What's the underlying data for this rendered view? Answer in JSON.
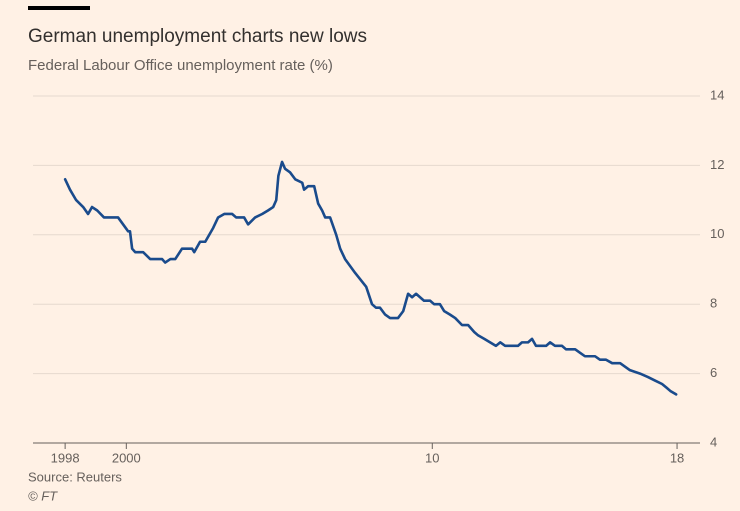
{
  "chart_data": {
    "type": "line",
    "title": "German unemployment charts new lows",
    "subtitle": "Federal Labour Office unemployment rate (%)",
    "source": "Source: Reuters",
    "credit": "© FT",
    "xlim": [
      1996.95,
      2018.75
    ],
    "xticks": [
      1998,
      2000,
      {
        "value": 2010,
        "label": "10"
      },
      {
        "value": 2018,
        "label": "18"
      }
    ],
    "ylim": [
      4,
      14
    ],
    "yticks": [
      4,
      6,
      8,
      10,
      12,
      14
    ],
    "grid": true,
    "color": "#1a4b8c",
    "x": [
      1998.0,
      1998.16,
      1998.36,
      1998.59,
      1998.75,
      1998.88,
      1999.05,
      1999.27,
      1999.73,
      2000.06,
      2000.12,
      2000.19,
      2000.29,
      2000.55,
      2000.78,
      2001.17,
      2001.27,
      2001.44,
      2001.6,
      2001.82,
      2002.15,
      2002.22,
      2002.41,
      2002.58,
      2002.84,
      2003.0,
      2003.2,
      2003.46,
      2003.59,
      2003.85,
      2003.98,
      2004.21,
      2004.44,
      2004.63,
      2004.8,
      2004.9,
      2004.97,
      2005.09,
      2005.19,
      2005.35,
      2005.52,
      2005.75,
      2005.81,
      2005.94,
      2006.14,
      2006.27,
      2006.4,
      2006.5,
      2006.66,
      2006.86,
      2006.99,
      2007.15,
      2007.48,
      2007.84,
      2008.03,
      2008.16,
      2008.29,
      2008.46,
      2008.62,
      2008.88,
      2009.05,
      2009.21,
      2009.34,
      2009.47,
      2009.6,
      2009.73,
      2009.93,
      2010.06,
      2010.25,
      2010.39,
      2010.58,
      2010.75,
      2010.97,
      2011.17,
      2011.37,
      2011.5,
      2011.7,
      2011.89,
      2012.08,
      2012.22,
      2012.38,
      2012.8,
      2012.93,
      2013.13,
      2013.26,
      2013.39,
      2013.72,
      2013.85,
      2014.01,
      2014.24,
      2014.37,
      2014.67,
      2014.83,
      2014.99,
      2015.32,
      2015.48,
      2015.68,
      2015.88,
      2016.14,
      2016.3,
      2016.46,
      2016.79,
      2017.05,
      2017.28,
      2017.51,
      2017.65,
      2017.78,
      2017.97
    ],
    "values": [
      11.6,
      11.3,
      11.0,
      10.8,
      10.6,
      10.8,
      10.7,
      10.5,
      10.5,
      10.1,
      10.1,
      9.6,
      9.5,
      9.5,
      9.3,
      9.3,
      9.2,
      9.3,
      9.3,
      9.6,
      9.6,
      9.5,
      9.8,
      9.8,
      10.2,
      10.5,
      10.6,
      10.6,
      10.5,
      10.5,
      10.3,
      10.5,
      10.6,
      10.7,
      10.8,
      11.0,
      11.7,
      12.1,
      11.9,
      11.8,
      11.6,
      11.5,
      11.3,
      11.4,
      11.4,
      10.9,
      10.7,
      10.5,
      10.5,
      10.0,
      9.6,
      9.3,
      8.9,
      8.5,
      8.0,
      7.9,
      7.9,
      7.7,
      7.6,
      7.6,
      7.8,
      8.3,
      8.2,
      8.3,
      8.2,
      8.1,
      8.1,
      8.0,
      8.0,
      7.8,
      7.7,
      7.6,
      7.4,
      7.4,
      7.2,
      7.1,
      7.0,
      6.9,
      6.8,
      6.9,
      6.8,
      6.8,
      6.9,
      6.9,
      7.0,
      6.8,
      6.8,
      6.9,
      6.8,
      6.8,
      6.7,
      6.7,
      6.6,
      6.5,
      6.5,
      6.4,
      6.4,
      6.3,
      6.3,
      6.2,
      6.1,
      6.0,
      5.9,
      5.8,
      5.7,
      5.6,
      5.5,
      5.4
    ]
  }
}
